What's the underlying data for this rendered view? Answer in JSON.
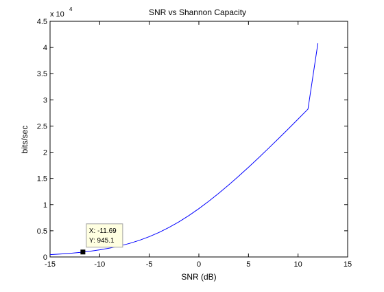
{
  "chart_data": {
    "type": "line",
    "title": "SNR vs Shannon Capacity",
    "xlabel": "SNR (dB)",
    "ylabel": "bits/sec",
    "y_multiplier_base": "x 10",
    "y_multiplier_exp": "4",
    "xlim": [
      -15,
      15
    ],
    "ylim": [
      0,
      45000
    ],
    "x_ticks": [
      -15,
      -10,
      -5,
      0,
      5,
      10,
      15
    ],
    "x_tick_labels": [
      "-15",
      "-10",
      "-5",
      "0",
      "5",
      "10",
      "15"
    ],
    "y_ticks": [
      0,
      5000,
      10000,
      15000,
      20000,
      25000,
      30000,
      35000,
      40000,
      45000
    ],
    "y_tick_labels": [
      "0",
      "0.5",
      "1",
      "1.5",
      "2",
      "2.5",
      "3",
      "3.5",
      "4",
      "4.5"
    ],
    "grid": false,
    "series": [
      {
        "color": "#0000ff",
        "x": [
          -15,
          -14,
          -13,
          -12,
          -11,
          -10,
          -9,
          -8,
          -7,
          -6,
          -5,
          -4,
          -3,
          -2,
          -1,
          0,
          1,
          2,
          3,
          4,
          5,
          6,
          7,
          8,
          9,
          10,
          11,
          12
        ],
        "y": [
          443,
          555,
          696,
          870,
          1087,
          1356,
          1687,
          2091,
          2583,
          3174,
          3876,
          4698,
          5646,
          6720,
          7916,
          9227,
          10643,
          12152,
          13743,
          15404,
          17123,
          18893,
          20704,
          22549,
          24423,
          26320,
          28235,
          40800
        ]
      }
    ],
    "datatip": {
      "x_text": "X: -11.69",
      "y_text": "Y: 945.1",
      "x": -11.69,
      "y": 945.1
    }
  }
}
